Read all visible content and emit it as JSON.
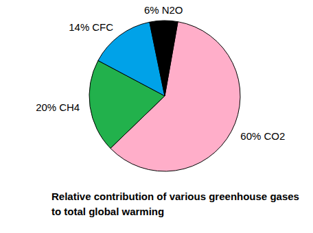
{
  "chart_data": {
    "type": "pie",
    "title": "Relative contribution of various greenhouse gases to total global warming",
    "categories": [
      "CO2",
      "CH4",
      "CFC",
      "N2O"
    ],
    "values": [
      60,
      20,
      14,
      6
    ],
    "value_labels": [
      "60%",
      "20%",
      "14%",
      "6%"
    ],
    "colors": [
      "#ffaec9",
      "#22b14c",
      "#00a2e8",
      "#000000"
    ],
    "data_labels": true
  }
}
